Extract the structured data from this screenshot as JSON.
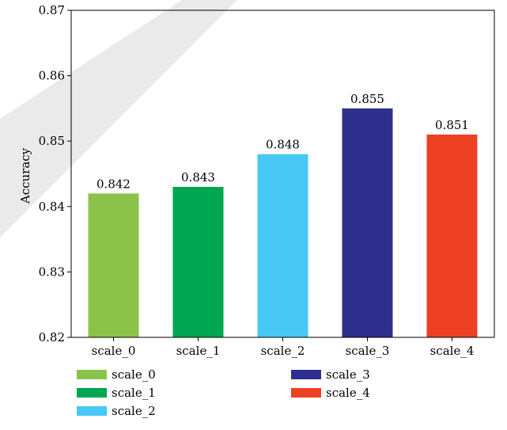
{
  "chart_data": {
    "type": "bar",
    "title": "",
    "xlabel": "",
    "ylabel": "Accuracy",
    "ylim": [
      0.82,
      0.87
    ],
    "yticks": [
      0.82,
      0.83,
      0.84,
      0.85,
      0.86,
      0.87
    ],
    "categories": [
      "scale_0",
      "scale_1",
      "scale_2",
      "scale_3",
      "scale_4"
    ],
    "values": [
      0.842,
      0.843,
      0.848,
      0.855,
      0.851
    ],
    "value_labels": [
      "0.842",
      "0.843",
      "0.848",
      "0.855",
      "0.851"
    ],
    "colors": [
      "#8BC34A",
      "#00A651",
      "#47C8F5",
      "#2E2F8C",
      "#EE4023"
    ],
    "grid": false,
    "legend": {
      "placement": "bottom",
      "columns": 2,
      "entries": [
        "scale_0",
        "scale_1",
        "scale_2",
        "scale_3",
        "scale_4"
      ]
    }
  }
}
